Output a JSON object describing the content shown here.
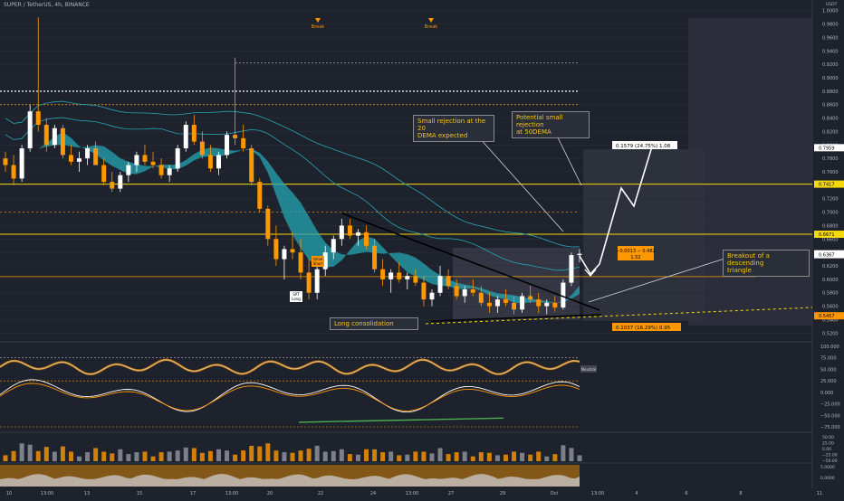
{
  "symbol_line": "SUPER / TetherUS, 4h, BINANCE",
  "price_axis": {
    "unit": "USDT",
    "ticks": [
      "1.0000",
      "0.9800",
      "0.9600",
      "0.9400",
      "0.9200",
      "0.9000",
      "0.8800",
      "0.8600",
      "0.8400",
      "0.8200",
      "0.8000",
      "0.7800",
      "0.7600",
      "0.7400",
      "0.7200",
      "0.7000",
      "0.6800",
      "0.6600",
      "0.6400",
      "0.6200",
      "0.6000",
      "0.5800",
      "0.5600",
      "0.5400",
      "0.5200"
    ],
    "ylim": [
      0.515,
      1.005
    ]
  },
  "price_labels": [
    {
      "text": "0.7959",
      "price": 0.7959,
      "bg": "#ffffff",
      "fg": "#000000"
    },
    {
      "text": "0.7417",
      "price": 0.7417,
      "bg": "#f5d90a",
      "fg": "#000000"
    },
    {
      "text": "0.6671",
      "price": 0.6671,
      "bg": "#f5d90a",
      "fg": "#000000"
    },
    {
      "text": "0.6380",
      "price": 0.638,
      "bg": "#ffffff",
      "fg": "#000000"
    },
    {
      "text": "0.6367",
      "price": 0.6367,
      "bg": "#ffffff",
      "fg": "#000000"
    },
    {
      "text": "0.5457",
      "price": 0.5457,
      "bg": "#ff9800",
      "fg": "#000000"
    }
  ],
  "time_axis": {
    "labels": [
      "10",
      "13:00",
      "13",
      "15",
      "17",
      "13:00",
      "20",
      "22",
      "24",
      "13:00",
      "27",
      "29",
      "Oct",
      "13:00",
      "4",
      "6",
      "8",
      "11"
    ]
  },
  "markers": [
    {
      "text": "Break"
    },
    {
      "text": "Break"
    }
  ],
  "callouts": {
    "c20": "Small rejection at the 20\nDEMA expected",
    "c50": "Potential small rejection\nat 50DEMA",
    "consolidation": "Long consolidation",
    "breakout": "Breakout of a descending\ntriangle"
  },
  "measure": {
    "top": "0.1579 (24.75%) 1.08",
    "mid1": "−0.0013 − 0.482",
    "mid2": "1.52",
    "bottom": "0.1037 (16.29%) 0.95"
  },
  "small_labels": {
    "spt_long": "SPT\nLong",
    "first_short": "Initial\nShort"
  },
  "osc_axis": {
    "ticks": [
      "100.000",
      "75.000",
      "50.000",
      "25.000",
      "0.000",
      "−25.000",
      "−50.000",
      "−75.000"
    ],
    "badge": "Neutral"
  },
  "vol_axis": {
    "ticks": [
      "50.00",
      "25.00",
      "0.00",
      "−25.00",
      "−50.00"
    ]
  },
  "bottom_axis": {
    "ticks": [
      "5.0000",
      "0.0000"
    ]
  },
  "chart_data": {
    "type": "candlestick",
    "title": "SUPER / TetherUS, 4h, BINANCE",
    "horizontal_levels": [
      0.7959,
      0.7417,
      0.6671,
      0.638,
      0.5457
    ],
    "candles_ohlc": [
      [
        0.78,
        0.79,
        0.76,
        0.77
      ],
      [
        0.77,
        0.785,
        0.74,
        0.75
      ],
      [
        0.75,
        0.8,
        0.745,
        0.795
      ],
      [
        0.795,
        0.86,
        0.79,
        0.85
      ],
      [
        0.85,
        0.99,
        0.82,
        0.83
      ],
      [
        0.83,
        0.84,
        0.79,
        0.8
      ],
      [
        0.8,
        0.83,
        0.795,
        0.825
      ],
      [
        0.825,
        0.83,
        0.78,
        0.785
      ],
      [
        0.785,
        0.8,
        0.77,
        0.775
      ],
      [
        0.775,
        0.79,
        0.76,
        0.78
      ],
      [
        0.78,
        0.8,
        0.77,
        0.795
      ],
      [
        0.795,
        0.805,
        0.77,
        0.77
      ],
      [
        0.77,
        0.78,
        0.74,
        0.745
      ],
      [
        0.745,
        0.76,
        0.73,
        0.735
      ],
      [
        0.735,
        0.76,
        0.73,
        0.755
      ],
      [
        0.755,
        0.775,
        0.745,
        0.77
      ],
      [
        0.77,
        0.79,
        0.76,
        0.785
      ],
      [
        0.785,
        0.8,
        0.77,
        0.775
      ],
      [
        0.775,
        0.79,
        0.765,
        0.77
      ],
      [
        0.77,
        0.78,
        0.75,
        0.755
      ],
      [
        0.755,
        0.77,
        0.745,
        0.765
      ],
      [
        0.765,
        0.8,
        0.76,
        0.795
      ],
      [
        0.795,
        0.835,
        0.79,
        0.83
      ],
      [
        0.83,
        0.845,
        0.8,
        0.805
      ],
      [
        0.805,
        0.82,
        0.78,
        0.785
      ],
      [
        0.785,
        0.8,
        0.76,
        0.765
      ],
      [
        0.765,
        0.79,
        0.755,
        0.785
      ],
      [
        0.785,
        0.82,
        0.78,
        0.815
      ],
      [
        0.815,
        0.93,
        0.8,
        0.81
      ],
      [
        0.81,
        0.83,
        0.79,
        0.795
      ],
      [
        0.795,
        0.8,
        0.74,
        0.745
      ],
      [
        0.745,
        0.75,
        0.7,
        0.705
      ],
      [
        0.705,
        0.71,
        0.65,
        0.66
      ],
      [
        0.66,
        0.68,
        0.62,
        0.63
      ],
      [
        0.63,
        0.65,
        0.6,
        0.645
      ],
      [
        0.645,
        0.67,
        0.63,
        0.64
      ],
      [
        0.64,
        0.66,
        0.6,
        0.61
      ],
      [
        0.61,
        0.63,
        0.57,
        0.58
      ],
      [
        0.58,
        0.62,
        0.57,
        0.615
      ],
      [
        0.615,
        0.65,
        0.605,
        0.64
      ],
      [
        0.64,
        0.665,
        0.63,
        0.66
      ],
      [
        0.66,
        0.69,
        0.65,
        0.68
      ],
      [
        0.68,
        0.69,
        0.66,
        0.665
      ],
      [
        0.665,
        0.675,
        0.65,
        0.67
      ],
      [
        0.67,
        0.68,
        0.645,
        0.65
      ],
      [
        0.65,
        0.66,
        0.61,
        0.615
      ],
      [
        0.615,
        0.63,
        0.59,
        0.6
      ],
      [
        0.6,
        0.615,
        0.58,
        0.61
      ],
      [
        0.61,
        0.625,
        0.595,
        0.6
      ],
      [
        0.6,
        0.61,
        0.585,
        0.605
      ],
      [
        0.605,
        0.615,
        0.59,
        0.595
      ],
      [
        0.595,
        0.605,
        0.56,
        0.57
      ],
      [
        0.57,
        0.585,
        0.56,
        0.58
      ],
      [
        0.58,
        0.62,
        0.575,
        0.605
      ],
      [
        0.605,
        0.615,
        0.585,
        0.59
      ],
      [
        0.59,
        0.6,
        0.57,
        0.575
      ],
      [
        0.575,
        0.59,
        0.565,
        0.585
      ],
      [
        0.585,
        0.6,
        0.575,
        0.58
      ],
      [
        0.58,
        0.59,
        0.56,
        0.565
      ],
      [
        0.565,
        0.58,
        0.55,
        0.56
      ],
      [
        0.56,
        0.575,
        0.55,
        0.57
      ],
      [
        0.57,
        0.585,
        0.56,
        0.565
      ],
      [
        0.565,
        0.575,
        0.548,
        0.555
      ],
      [
        0.555,
        0.58,
        0.55,
        0.575
      ],
      [
        0.575,
        0.59,
        0.565,
        0.57
      ],
      [
        0.57,
        0.58,
        0.55,
        0.56
      ],
      [
        0.56,
        0.57,
        0.548,
        0.565
      ],
      [
        0.565,
        0.575,
        0.552,
        0.558
      ],
      [
        0.558,
        0.6,
        0.555,
        0.595
      ],
      [
        0.595,
        0.64,
        0.59,
        0.636
      ],
      [
        0.636,
        0.645,
        0.625,
        0.638
      ]
    ]
  }
}
